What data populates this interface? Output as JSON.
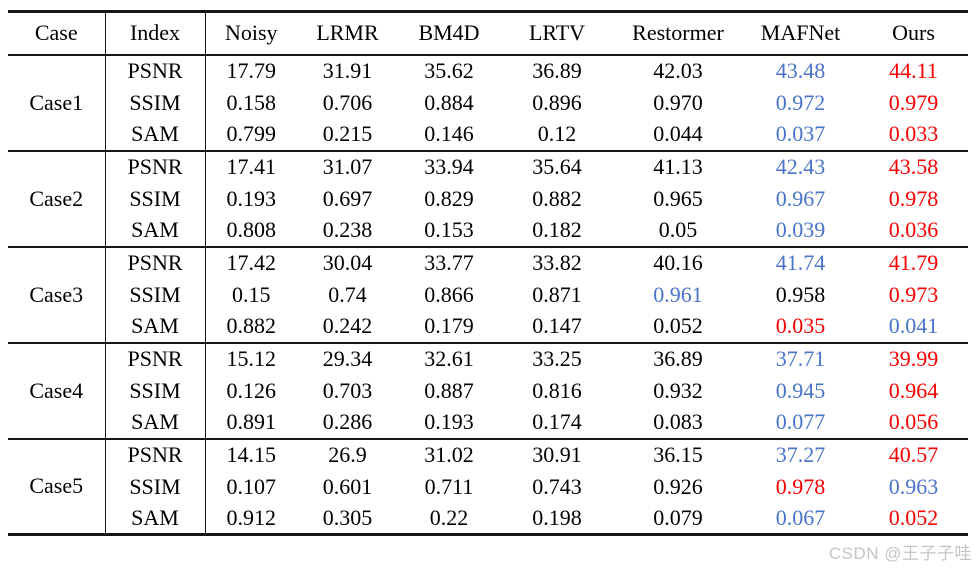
{
  "table": {
    "columns": [
      "Case",
      "Index",
      "Noisy",
      "LRMR",
      "BM4D",
      "LRTV",
      "Restormer",
      "MAFNet",
      "Ours"
    ],
    "groups": [
      {
        "case": "Case1",
        "rows": [
          {
            "index": "PSNR",
            "values": [
              "17.79",
              "31.91",
              "35.62",
              "36.89",
              "42.03",
              "43.48",
              "44.11"
            ],
            "styles": [
              "k",
              "k",
              "k",
              "k",
              "k",
              "b",
              "r"
            ]
          },
          {
            "index": "SSIM",
            "values": [
              "0.158",
              "0.706",
              "0.884",
              "0.896",
              "0.970",
              "0.972",
              "0.979"
            ],
            "styles": [
              "k",
              "k",
              "k",
              "k",
              "k",
              "b",
              "r"
            ]
          },
          {
            "index": "SAM",
            "values": [
              "0.799",
              "0.215",
              "0.146",
              "0.12",
              "0.044",
              "0.037",
              "0.033"
            ],
            "styles": [
              "k",
              "k",
              "k",
              "k",
              "k",
              "b",
              "r"
            ]
          }
        ]
      },
      {
        "case": "Case2",
        "rows": [
          {
            "index": "PSNR",
            "values": [
              "17.41",
              "31.07",
              "33.94",
              "35.64",
              "41.13",
              "42.43",
              "43.58"
            ],
            "styles": [
              "k",
              "k",
              "k",
              "k",
              "k",
              "b",
              "r"
            ]
          },
          {
            "index": "SSIM",
            "values": [
              "0.193",
              "0.697",
              "0.829",
              "0.882",
              "0.965",
              "0.967",
              "0.978"
            ],
            "styles": [
              "k",
              "k",
              "k",
              "k",
              "k",
              "b",
              "r"
            ]
          },
          {
            "index": "SAM",
            "values": [
              "0.808",
              "0.238",
              "0.153",
              "0.182",
              "0.05",
              "0.039",
              "0.036"
            ],
            "styles": [
              "k",
              "k",
              "k",
              "k",
              "k",
              "b",
              "r"
            ]
          }
        ]
      },
      {
        "case": "Case3",
        "rows": [
          {
            "index": "PSNR",
            "values": [
              "17.42",
              "30.04",
              "33.77",
              "33.82",
              "40.16",
              "41.74",
              "41.79"
            ],
            "styles": [
              "k",
              "k",
              "k",
              "k",
              "k",
              "b",
              "r"
            ]
          },
          {
            "index": "SSIM",
            "values": [
              "0.15",
              "0.74",
              "0.866",
              "0.871",
              "0.961",
              "0.958",
              "0.973"
            ],
            "styles": [
              "k",
              "k",
              "k",
              "k",
              "b",
              "k",
              "r"
            ]
          },
          {
            "index": "SAM",
            "values": [
              "0.882",
              "0.242",
              "0.179",
              "0.147",
              "0.052",
              "0.035",
              "0.041"
            ],
            "styles": [
              "k",
              "k",
              "k",
              "k",
              "k",
              "r",
              "b"
            ]
          }
        ]
      },
      {
        "case": "Case4",
        "rows": [
          {
            "index": "PSNR",
            "values": [
              "15.12",
              "29.34",
              "32.61",
              "33.25",
              "36.89",
              "37.71",
              "39.99"
            ],
            "styles": [
              "k",
              "k",
              "k",
              "k",
              "k",
              "b",
              "r"
            ]
          },
          {
            "index": "SSIM",
            "values": [
              "0.126",
              "0.703",
              "0.887",
              "0.816",
              "0.932",
              "0.945",
              "0.964"
            ],
            "styles": [
              "k",
              "k",
              "k",
              "k",
              "k",
              "b",
              "r"
            ]
          },
          {
            "index": "SAM",
            "values": [
              "0.891",
              "0.286",
              "0.193",
              "0.174",
              "0.083",
              "0.077",
              "0.056"
            ],
            "styles": [
              "k",
              "k",
              "k",
              "k",
              "k",
              "b",
              "r"
            ]
          }
        ]
      },
      {
        "case": "Case5",
        "rows": [
          {
            "index": "PSNR",
            "values": [
              "14.15",
              "26.9",
              "31.02",
              "30.91",
              "36.15",
              "37.27",
              "40.57"
            ],
            "styles": [
              "k",
              "k",
              "k",
              "k",
              "k",
              "b",
              "r"
            ]
          },
          {
            "index": "SSIM",
            "values": [
              "0.107",
              "0.601",
              "0.711",
              "0.743",
              "0.926",
              "0.978",
              "0.963"
            ],
            "styles": [
              "k",
              "k",
              "k",
              "k",
              "k",
              "r",
              "b"
            ]
          },
          {
            "index": "SAM",
            "values": [
              "0.912",
              "0.305",
              "0.22",
              "0.198",
              "0.079",
              "0.067",
              "0.052"
            ],
            "styles": [
              "k",
              "k",
              "k",
              "k",
              "k",
              "b",
              "r"
            ]
          }
        ]
      }
    ]
  },
  "colors": {
    "best": "#fa0000",
    "second_best": "#4a74c8",
    "text": "#000000",
    "line": "#151515",
    "watermark": "#c9c3c3"
  },
  "watermark": {
    "text": "CSDN @王子子哇"
  }
}
